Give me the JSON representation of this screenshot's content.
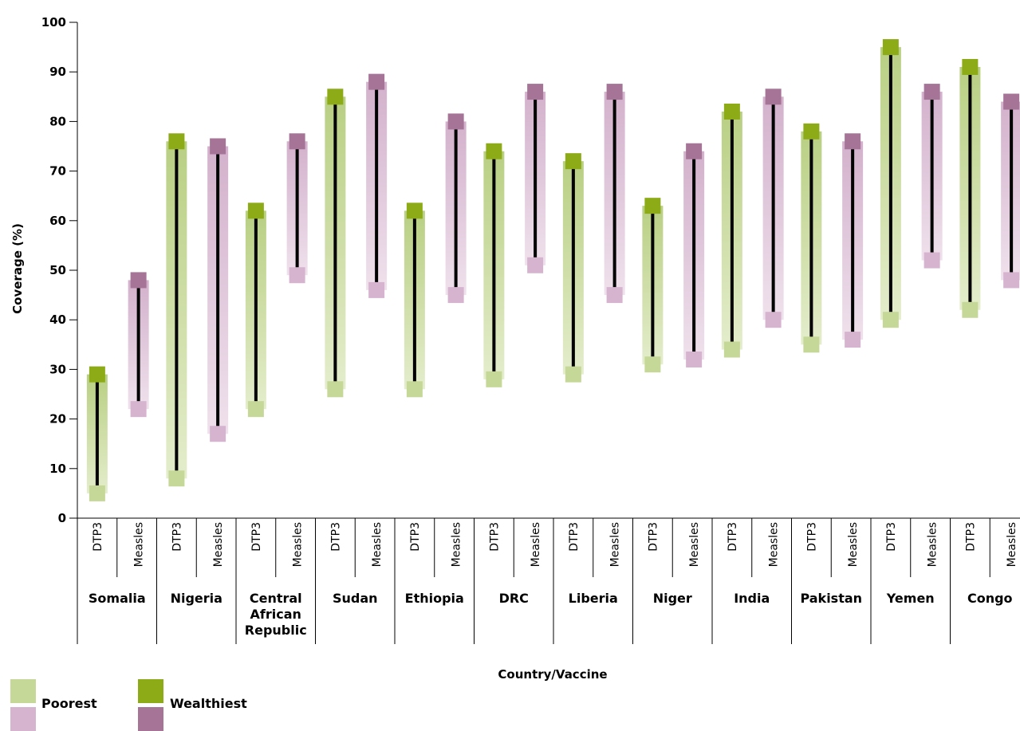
{
  "chart_data": {
    "type": "range-bar",
    "xlabel": "Country/Vaccine",
    "ylabel": "Coverage (%)",
    "ylim": [
      0,
      100
    ],
    "yticks": [
      "0",
      "10",
      "20",
      "30",
      "40",
      "50",
      "60",
      "70",
      "80",
      "90",
      "100"
    ],
    "vaccines": [
      "DTP3",
      "Measles"
    ],
    "countries": [
      {
        "name": "Somalia",
        "label_lines": [
          "Somalia"
        ],
        "dtp3": {
          "poorest": 5,
          "wealthiest": 29
        },
        "measles": {
          "poorest": 22,
          "wealthiest": 48
        }
      },
      {
        "name": "Nigeria",
        "label_lines": [
          "Nigeria"
        ],
        "dtp3": {
          "poorest": 8,
          "wealthiest": 76
        },
        "measles": {
          "poorest": 17,
          "wealthiest": 75
        }
      },
      {
        "name": "Central African Republic",
        "label_lines": [
          "Central",
          "African",
          "Republic"
        ],
        "dtp3": {
          "poorest": 22,
          "wealthiest": 62
        },
        "measles": {
          "poorest": 49,
          "wealthiest": 76
        }
      },
      {
        "name": "Sudan",
        "label_lines": [
          "Sudan"
        ],
        "dtp3": {
          "poorest": 26,
          "wealthiest": 85
        },
        "measles": {
          "poorest": 46,
          "wealthiest": 88
        }
      },
      {
        "name": "Ethiopia",
        "label_lines": [
          "Ethiopia"
        ],
        "dtp3": {
          "poorest": 26,
          "wealthiest": 62
        },
        "measles": {
          "poorest": 45,
          "wealthiest": 80
        }
      },
      {
        "name": "DRC",
        "label_lines": [
          "DRC"
        ],
        "dtp3": {
          "poorest": 28,
          "wealthiest": 74
        },
        "measles": {
          "poorest": 51,
          "wealthiest": 86
        }
      },
      {
        "name": "Liberia",
        "label_lines": [
          "Liberia"
        ],
        "dtp3": {
          "poorest": 29,
          "wealthiest": 72
        },
        "measles": {
          "poorest": 45,
          "wealthiest": 86
        }
      },
      {
        "name": "Niger",
        "label_lines": [
          "Niger"
        ],
        "dtp3": {
          "poorest": 31,
          "wealthiest": 63
        },
        "measles": {
          "poorest": 32,
          "wealthiest": 74
        }
      },
      {
        "name": "India",
        "label_lines": [
          "India"
        ],
        "dtp3": {
          "poorest": 34,
          "wealthiest": 82
        },
        "measles": {
          "poorest": 40,
          "wealthiest": 85
        }
      },
      {
        "name": "Pakistan",
        "label_lines": [
          "Pakistan"
        ],
        "dtp3": {
          "poorest": 35,
          "wealthiest": 78
        },
        "measles": {
          "poorest": 36,
          "wealthiest": 76
        }
      },
      {
        "name": "Yemen",
        "label_lines": [
          "Yemen"
        ],
        "dtp3": {
          "poorest": 40,
          "wealthiest": 95
        },
        "measles": {
          "poorest": 52,
          "wealthiest": 86
        }
      },
      {
        "name": "Congo",
        "label_lines": [
          "Congo"
        ],
        "dtp3": {
          "poorest": 42,
          "wealthiest": 91
        },
        "measles": {
          "poorest": 48,
          "wealthiest": 84
        }
      }
    ],
    "legend": {
      "poorest_label": "Poorest",
      "wealthiest_label": "Wealthiest"
    },
    "colors": {
      "dtp3_poorest": "#c5d897",
      "dtp3_wealthiest": "#8cab17",
      "dtp3_band": "#c7da9c",
      "measles_poorest": "#d6b4cf",
      "measles_wealthiest": "#a57497",
      "measles_band": "#dcbfd7",
      "range_line": "#000000"
    }
  }
}
